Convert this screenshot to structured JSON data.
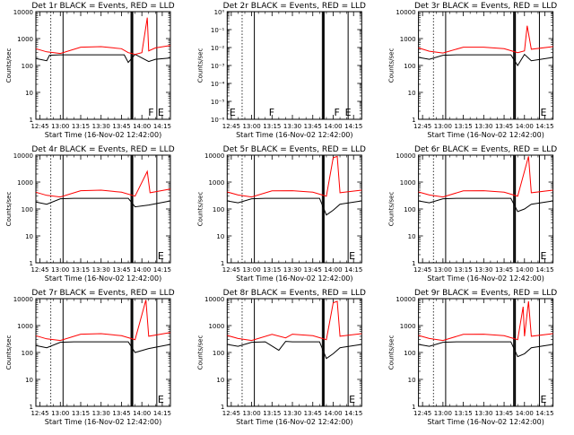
{
  "chart_data": [
    {
      "type": "line",
      "title": "Det 1r BLACK = Events, RED = LLD",
      "ylabel": "Counts/sec",
      "xlabel": "Start Time (16-Nov-02 12:42:00)",
      "x_ticks": [
        "12:45",
        "13:00",
        "13:15",
        "13:30",
        "13:45",
        "14:00",
        "14:15"
      ],
      "y_ticks": [
        "1",
        "10",
        "100",
        "1000",
        "10000"
      ],
      "y_scale": "log",
      "ylim": [
        1,
        10000
      ],
      "xlim": [
        "12:42",
        "14:21"
      ],
      "series": [
        {
          "color": "#000000",
          "x": [
            "12:42",
            "12:50",
            "12:52",
            "13:00",
            "13:05",
            "13:15",
            "13:20",
            "13:30",
            "13:40",
            "13:47",
            "13:50",
            "13:55",
            "14:05",
            "14:10",
            "14:21"
          ],
          "y": [
            180,
            150,
            240,
            250,
            250,
            250,
            250,
            250,
            250,
            250,
            130,
            260,
            140,
            170,
            190
          ]
        },
        {
          "color": "#ff0000",
          "x": [
            "12:42",
            "12:50",
            "13:00",
            "13:15",
            "13:30",
            "13:45",
            "13:50",
            "13:55",
            "14:00",
            "14:04",
            "14:05",
            "14:10",
            "14:21"
          ],
          "y": [
            420,
            320,
            280,
            480,
            500,
            420,
            300,
            260,
            300,
            6000,
            350,
            450,
            550
          ]
        }
      ],
      "letter_labels": [
        {
          "text": "F",
          "at": "14:04"
        },
        {
          "text": "E",
          "at": "14:11"
        }
      ]
    },
    {
      "type": "line",
      "title": "Det 2r BLACK = Events, RED = LLD",
      "ylabel": "Counts/sec",
      "xlabel": "Start Time (16-Nov-02 12:42:00)",
      "x_ticks": [
        "12:45",
        "13:00",
        "13:15",
        "13:30",
        "13:45",
        "14:00",
        "14:15"
      ],
      "y_ticks": [
        "10⁻⁶",
        "10⁻⁵",
        "10⁻⁴",
        "10⁻³",
        "10⁻²",
        "10⁻¹",
        "10⁰"
      ],
      "y_scale": "log",
      "ylim": [
        1e-06,
        1
      ],
      "xlim": [
        "12:42",
        "14:21"
      ],
      "series": [],
      "letter_labels": [
        {
          "text": "E",
          "at": "12:43"
        },
        {
          "text": "F",
          "at": "13:12"
        },
        {
          "text": "F",
          "at": "14:00"
        },
        {
          "text": "E",
          "at": "14:08"
        }
      ]
    },
    {
      "type": "line",
      "title": "Det 3r BLACK = Events, RED = LLD",
      "ylabel": "Counts/sec",
      "xlabel": "Start Time (16-Nov-02 12:42:00)",
      "x_ticks": [
        "12:45",
        "13:00",
        "13:15",
        "13:30",
        "13:45",
        "14:00",
        "14:15"
      ],
      "y_ticks": [
        "1",
        "10",
        "100",
        "1000",
        "10000"
      ],
      "y_scale": "log",
      "ylim": [
        1,
        10000
      ],
      "xlim": [
        "12:42",
        "14:21"
      ],
      "series": [
        {
          "color": "#000000",
          "x": [
            "12:42",
            "12:50",
            "13:00",
            "13:10",
            "13:30",
            "13:50",
            "13:55",
            "14:00",
            "14:05",
            "14:21"
          ],
          "y": [
            200,
            170,
            240,
            250,
            250,
            250,
            100,
            260,
            150,
            200
          ]
        },
        {
          "color": "#ff0000",
          "x": [
            "12:42",
            "12:50",
            "13:00",
            "13:15",
            "13:30",
            "13:45",
            "13:55",
            "14:00",
            "14:02",
            "14:05",
            "14:21"
          ],
          "y": [
            450,
            340,
            290,
            480,
            480,
            420,
            300,
            350,
            3000,
            400,
            500
          ]
        }
      ],
      "letter_labels": [
        {
          "text": "E",
          "at": "14:11"
        }
      ]
    },
    {
      "type": "line",
      "title": "Det 4r BLACK = Events, RED = LLD",
      "ylabel": "Counts/sec",
      "xlabel": "Start Time (16-Nov-02 12:42:00)",
      "x_ticks": [
        "12:45",
        "13:00",
        "13:15",
        "13:30",
        "13:45",
        "14:00",
        "14:15"
      ],
      "y_ticks": [
        "1",
        "10",
        "100",
        "1000",
        "10000"
      ],
      "y_scale": "log",
      "ylim": [
        1,
        10000
      ],
      "xlim": [
        "12:42",
        "14:21"
      ],
      "series": [
        {
          "color": "#000000",
          "x": [
            "12:42",
            "12:50",
            "13:00",
            "13:10",
            "13:30",
            "13:50",
            "13:55",
            "14:05",
            "14:21"
          ],
          "y": [
            180,
            150,
            240,
            250,
            250,
            250,
            120,
            140,
            200
          ]
        },
        {
          "color": "#ff0000",
          "x": [
            "12:42",
            "12:50",
            "13:00",
            "13:15",
            "13:30",
            "13:45",
            "13:55",
            "14:04",
            "14:06",
            "14:21"
          ],
          "y": [
            420,
            320,
            280,
            480,
            500,
            420,
            300,
            2500,
            400,
            550
          ]
        }
      ],
      "letter_labels": [
        {
          "text": "E",
          "at": "14:11"
        }
      ]
    },
    {
      "type": "line",
      "title": "Det 5r BLACK = Events, RED = LLD",
      "ylabel": "Counts/sec",
      "xlabel": "Start Time (16-Nov-02 12:42:00)",
      "x_ticks": [
        "12:45",
        "13:00",
        "13:15",
        "13:30",
        "13:45",
        "14:00",
        "14:15"
      ],
      "y_ticks": [
        "1",
        "10",
        "100",
        "1000",
        "10000"
      ],
      "y_scale": "log",
      "ylim": [
        1,
        10000
      ],
      "xlim": [
        "12:42",
        "14:21"
      ],
      "series": [
        {
          "color": "#000000",
          "x": [
            "12:42",
            "12:50",
            "13:00",
            "13:10",
            "13:30",
            "13:50",
            "13:55",
            "14:00",
            "14:05",
            "14:21"
          ],
          "y": [
            200,
            170,
            240,
            250,
            250,
            250,
            60,
            90,
            150,
            200
          ]
        },
        {
          "color": "#ff0000",
          "x": [
            "12:42",
            "12:50",
            "13:00",
            "13:15",
            "13:30",
            "13:45",
            "13:55",
            "14:00",
            "14:03",
            "14:05",
            "14:21"
          ],
          "y": [
            430,
            330,
            280,
            470,
            480,
            420,
            300,
            8000,
            9000,
            400,
            500
          ]
        }
      ],
      "letter_labels": [
        {
          "text": "E",
          "at": "14:11"
        }
      ]
    },
    {
      "type": "line",
      "title": "Det 6r BLACK = Events, RED = LLD",
      "ylabel": "Counts/sec",
      "xlabel": "Start Time (16-Nov-02 12:42:00)",
      "x_ticks": [
        "12:45",
        "13:00",
        "13:15",
        "13:30",
        "13:45",
        "14:00",
        "14:15"
      ],
      "y_ticks": [
        "1",
        "10",
        "100",
        "1000",
        "10000"
      ],
      "y_scale": "log",
      "ylim": [
        1,
        10000
      ],
      "xlim": [
        "12:42",
        "14:21"
      ],
      "series": [
        {
          "color": "#000000",
          "x": [
            "12:42",
            "12:50",
            "13:00",
            "13:10",
            "13:30",
            "13:50",
            "13:55",
            "14:00",
            "14:05",
            "14:21"
          ],
          "y": [
            200,
            170,
            240,
            250,
            250,
            250,
            80,
            100,
            150,
            200
          ]
        },
        {
          "color": "#ff0000",
          "x": [
            "12:42",
            "12:50",
            "13:00",
            "13:15",
            "13:30",
            "13:45",
            "13:55",
            "14:03",
            "14:05",
            "14:21"
          ],
          "y": [
            430,
            330,
            280,
            470,
            480,
            420,
            300,
            9000,
            400,
            500
          ]
        }
      ],
      "letter_labels": [
        {
          "text": "E",
          "at": "14:11"
        }
      ]
    },
    {
      "type": "line",
      "title": "Det 7r BLACK = Events, RED = LLD",
      "ylabel": "Counts/sec",
      "xlabel": "Start Time (16-Nov-02 12:42:00)",
      "x_ticks": [
        "12:45",
        "13:00",
        "13:15",
        "13:30",
        "13:45",
        "14:00",
        "14:15"
      ],
      "y_ticks": [
        "1",
        "10",
        "100",
        "1000",
        "10000"
      ],
      "y_scale": "log",
      "ylim": [
        1,
        10000
      ],
      "xlim": [
        "12:42",
        "14:21"
      ],
      "series": [
        {
          "color": "#000000",
          "x": [
            "12:42",
            "12:50",
            "13:00",
            "13:10",
            "13:30",
            "13:50",
            "13:55",
            "14:05",
            "14:21"
          ],
          "y": [
            180,
            150,
            240,
            250,
            250,
            250,
            100,
            140,
            200
          ]
        },
        {
          "color": "#ff0000",
          "x": [
            "12:42",
            "12:50",
            "13:00",
            "13:15",
            "13:30",
            "13:45",
            "13:55",
            "14:03",
            "14:05",
            "14:21"
          ],
          "y": [
            420,
            320,
            280,
            480,
            500,
            420,
            300,
            9000,
            400,
            550
          ]
        }
      ],
      "letter_labels": [
        {
          "text": "E",
          "at": "14:11"
        }
      ]
    },
    {
      "type": "line",
      "title": "Det 8r BLACK = Events, RED = LLD",
      "ylabel": "Counts/sec",
      "xlabel": "Start Time (16-Nov-02 12:42:00)",
      "x_ticks": [
        "12:45",
        "13:00",
        "13:15",
        "13:30",
        "13:45",
        "14:00",
        "14:15"
      ],
      "y_ticks": [
        "1",
        "10",
        "100",
        "1000",
        "10000"
      ],
      "y_scale": "log",
      "ylim": [
        1,
        10000
      ],
      "xlim": [
        "12:42",
        "14:21"
      ],
      "series": [
        {
          "color": "#000000",
          "x": [
            "12:42",
            "12:50",
            "13:00",
            "13:10",
            "13:20",
            "13:25",
            "13:30",
            "13:50",
            "13:55",
            "14:00",
            "14:05",
            "14:21"
          ],
          "y": [
            200,
            170,
            240,
            250,
            120,
            260,
            250,
            250,
            60,
            90,
            150,
            200
          ]
        },
        {
          "color": "#ff0000",
          "x": [
            "12:42",
            "12:50",
            "13:00",
            "13:15",
            "13:25",
            "13:30",
            "13:45",
            "13:55",
            "14:00",
            "14:03",
            "14:05",
            "14:21"
          ],
          "y": [
            430,
            330,
            280,
            470,
            350,
            480,
            420,
            300,
            7000,
            8000,
            400,
            500
          ]
        }
      ],
      "letter_labels": [
        {
          "text": "E",
          "at": "14:11"
        }
      ]
    },
    {
      "type": "line",
      "title": "Det 9r BLACK = Events, RED = LLD",
      "ylabel": "Counts/sec",
      "xlabel": "Start Time (16-Nov-02 12:42:00)",
      "x_ticks": [
        "12:45",
        "13:00",
        "13:15",
        "13:30",
        "13:45",
        "14:00",
        "14:15"
      ],
      "y_ticks": [
        "1",
        "10",
        "100",
        "1000",
        "10000"
      ],
      "y_scale": "log",
      "ylim": [
        1,
        10000
      ],
      "xlim": [
        "12:42",
        "14:21"
      ],
      "series": [
        {
          "color": "#000000",
          "x": [
            "12:42",
            "12:50",
            "13:00",
            "13:10",
            "13:30",
            "13:50",
            "13:55",
            "14:00",
            "14:05",
            "14:21"
          ],
          "y": [
            200,
            170,
            240,
            250,
            250,
            250,
            70,
            90,
            150,
            200
          ]
        },
        {
          "color": "#ff0000",
          "x": [
            "12:42",
            "12:50",
            "13:00",
            "13:15",
            "13:30",
            "13:45",
            "13:55",
            "13:59",
            "14:00",
            "14:03",
            "14:05",
            "14:21"
          ],
          "y": [
            430,
            330,
            280,
            470,
            480,
            420,
            300,
            5000,
            400,
            8000,
            400,
            500
          ]
        }
      ],
      "letter_labels": [
        {
          "text": "E",
          "at": "14:11"
        }
      ]
    }
  ],
  "markers": {
    "dotted_at": [
      "12:53"
    ],
    "solid_at": [
      "13:02",
      "13:52",
      "14:11"
    ],
    "thick_at": [
      "13:53"
    ]
  }
}
